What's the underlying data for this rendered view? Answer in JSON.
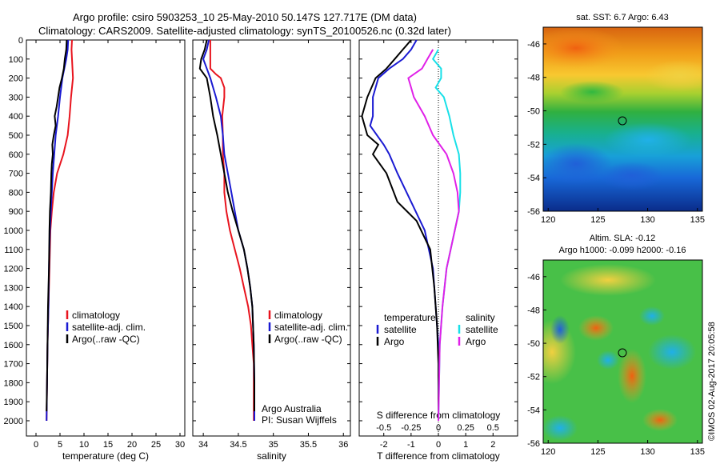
{
  "title": {
    "line1": "Argo profile: csiro 5903253_10 25-May-2010 50.147S 127.717E (DM data)",
    "line2": "Climatology: CARS2009. Satellite-adjusted climatology: synTS_20100526.nc (0.32d later)"
  },
  "colors": {
    "climatology": "#e8141e",
    "satellite": "#1a1ad2",
    "argo": "#000000",
    "sat_salinity": "#18e0e8",
    "argo_salinity": "#e020e8"
  },
  "chart_data": [
    {
      "type": "line",
      "xlabel": "temperature (deg C)",
      "ylabel": "",
      "xlim": [
        -2,
        31
      ],
      "ylim": [
        2080,
        0
      ],
      "x_ticks": [
        "0",
        "5",
        "10",
        "15",
        "20",
        "25",
        "30"
      ],
      "y_ticks": [
        "0",
        "100",
        "200",
        "300",
        "400",
        "500",
        "600",
        "700",
        "800",
        "900",
        "1000",
        "1100",
        "1200",
        "1300",
        "1400",
        "1500",
        "1600",
        "1700",
        "1800",
        "1900",
        "2000"
      ],
      "legend": [
        "climatology",
        "satellite-adj. clim.",
        "Argo(..raw -QC)"
      ],
      "series": [
        {
          "name": "climatology",
          "points": [
            [
              7.5,
              0
            ],
            [
              7.4,
              50
            ],
            [
              7.5,
              100
            ],
            [
              7.6,
              150
            ],
            [
              7.7,
              200
            ],
            [
              7.3,
              300
            ],
            [
              7.0,
              400
            ],
            [
              6.6,
              500
            ],
            [
              5.7,
              600
            ],
            [
              4.4,
              700
            ],
            [
              3.7,
              800
            ],
            [
              3.3,
              900
            ],
            [
              3.0,
              1000
            ],
            [
              2.8,
              1200
            ],
            [
              2.6,
              1400
            ],
            [
              2.4,
              1600
            ],
            [
              2.3,
              1800
            ],
            [
              2.2,
              2000
            ]
          ]
        },
        {
          "name": "satellite-adj. clim.",
          "points": [
            [
              6.7,
              0
            ],
            [
              6.6,
              50
            ],
            [
              6.3,
              100
            ],
            [
              5.9,
              150
            ],
            [
              5.5,
              200
            ],
            [
              5.0,
              300
            ],
            [
              4.6,
              400
            ],
            [
              4.1,
              500
            ],
            [
              3.8,
              600
            ],
            [
              3.5,
              700
            ],
            [
              3.3,
              800
            ],
            [
              3.1,
              900
            ],
            [
              2.9,
              1000
            ],
            [
              2.7,
              1200
            ],
            [
              2.6,
              1400
            ],
            [
              2.4,
              1600
            ],
            [
              2.3,
              1800
            ],
            [
              2.2,
              2000
            ]
          ]
        },
        {
          "name": "Argo(..raw -QC)",
          "points": [
            [
              6.4,
              0
            ],
            [
              6.3,
              50
            ],
            [
              6.0,
              100
            ],
            [
              5.8,
              150
            ],
            [
              5.4,
              200
            ],
            [
              4.9,
              250
            ],
            [
              4.6,
              300
            ],
            [
              4.3,
              350
            ],
            [
              3.9,
              400
            ],
            [
              4.1,
              450
            ],
            [
              3.7,
              500
            ],
            [
              3.4,
              550
            ],
            [
              3.5,
              600
            ],
            [
              3.3,
              650
            ],
            [
              3.2,
              700
            ],
            [
              3.1,
              800
            ],
            [
              2.9,
              900
            ],
            [
              2.8,
              1000
            ],
            [
              2.7,
              1200
            ],
            [
              2.5,
              1400
            ],
            [
              2.4,
              1600
            ],
            [
              2.3,
              1800
            ],
            [
              2.2,
              1950
            ]
          ]
        }
      ]
    },
    {
      "type": "line",
      "xlabel": "salinity",
      "xlim": [
        33.85,
        36.1
      ],
      "ylim": [
        2080,
        0
      ],
      "x_ticks": [
        "34",
        "34.5",
        "35",
        "35.5",
        "36"
      ],
      "legend": [
        "climatology",
        "satellite-adj. clim.",
        "Argo(..raw -QC)"
      ],
      "annotation": [
        "Argo Australia",
        "PI: Susan Wijffels"
      ],
      "series": [
        {
          "name": "climatology",
          "points": [
            [
              34.1,
              0
            ],
            [
              34.1,
              100
            ],
            [
              34.1,
              150
            ],
            [
              34.18,
              180
            ],
            [
              34.25,
              200
            ],
            [
              34.3,
              250
            ],
            [
              34.3,
              300
            ],
            [
              34.27,
              400
            ],
            [
              34.28,
              500
            ],
            [
              34.28,
              600
            ],
            [
              34.3,
              700
            ],
            [
              34.3,
              800
            ],
            [
              34.33,
              900
            ],
            [
              34.38,
              1000
            ],
            [
              34.45,
              1100
            ],
            [
              34.52,
              1200
            ],
            [
              34.58,
              1300
            ],
            [
              34.64,
              1400
            ],
            [
              34.68,
              1500
            ],
            [
              34.7,
              1600
            ],
            [
              34.72,
              1700
            ],
            [
              34.72,
              2000
            ]
          ]
        },
        {
          "name": "satellite-adj. clim.",
          "points": [
            [
              34.08,
              0
            ],
            [
              34.05,
              50
            ],
            [
              34.0,
              100
            ],
            [
              34.05,
              150
            ],
            [
              34.1,
              200
            ],
            [
              34.18,
              300
            ],
            [
              34.25,
              400
            ],
            [
              34.28,
              500
            ],
            [
              34.3,
              600
            ],
            [
              34.35,
              700
            ],
            [
              34.4,
              800
            ],
            [
              34.45,
              900
            ],
            [
              34.5,
              1000
            ],
            [
              34.58,
              1100
            ],
            [
              34.63,
              1200
            ],
            [
              34.67,
              1300
            ],
            [
              34.7,
              1400
            ],
            [
              34.72,
              1600
            ],
            [
              34.73,
              1800
            ],
            [
              34.73,
              2000
            ]
          ]
        },
        {
          "name": "Argo(..raw -QC)",
          "points": [
            [
              34.05,
              0
            ],
            [
              34.02,
              50
            ],
            [
              33.97,
              100
            ],
            [
              33.95,
              150
            ],
            [
              34.05,
              200
            ],
            [
              34.1,
              300
            ],
            [
              34.14,
              400
            ],
            [
              34.2,
              500
            ],
            [
              34.25,
              600
            ],
            [
              34.3,
              700
            ],
            [
              34.35,
              800
            ],
            [
              34.42,
              900
            ],
            [
              34.5,
              1000
            ],
            [
              34.58,
              1100
            ],
            [
              34.63,
              1200
            ],
            [
              34.67,
              1300
            ],
            [
              34.7,
              1400
            ],
            [
              34.72,
              1600
            ],
            [
              34.73,
              1800
            ],
            [
              34.73,
              1950
            ]
          ]
        }
      ]
    },
    {
      "type": "line",
      "xlabel": "T difference from climatology",
      "top_axis_label": "S difference from climatology",
      "xlim": [
        -2.9,
        2.9
      ],
      "ylim": [
        2080,
        0
      ],
      "x_ticks": [
        "-2",
        "-1",
        "0",
        "1",
        "2"
      ],
      "top_ticks": [
        "-0.5",
        "-0.25",
        "0",
        "0.25",
        "0.5"
      ],
      "legend_temperature": {
        "title": "temperature",
        "items": [
          "satellite",
          "Argo"
        ]
      },
      "legend_salinity": {
        "title": "salinity",
        "items": [
          "satellite",
          "Argo"
        ]
      },
      "series": [
        {
          "name": "satellite",
          "group": "temperature",
          "points": [
            [
              -0.8,
              0
            ],
            [
              -1.0,
              50
            ],
            [
              -1.3,
              100
            ],
            [
              -1.8,
              150
            ],
            [
              -2.2,
              200
            ],
            [
              -2.4,
              300
            ],
            [
              -2.4,
              400
            ],
            [
              -2.5,
              450
            ],
            [
              -2.0,
              550
            ],
            [
              -1.8,
              600
            ],
            [
              -1.5,
              700
            ],
            [
              -1.0,
              850
            ],
            [
              -0.5,
              1000
            ],
            [
              -0.2,
              1200
            ],
            [
              -0.1,
              1400
            ],
            [
              0,
              1600
            ],
            [
              0,
              2000
            ]
          ]
        },
        {
          "name": "Argo",
          "group": "temperature",
          "points": [
            [
              -1.0,
              0
            ],
            [
              -1.3,
              50
            ],
            [
              -1.6,
              100
            ],
            [
              -1.9,
              150
            ],
            [
              -2.3,
              200
            ],
            [
              -2.6,
              300
            ],
            [
              -2.8,
              400
            ],
            [
              -2.6,
              500
            ],
            [
              -2.2,
              550
            ],
            [
              -2.4,
              600
            ],
            [
              -1.9,
              700
            ],
            [
              -1.5,
              850
            ],
            [
              -0.8,
              950
            ],
            [
              -0.3,
              1100
            ],
            [
              -0.15,
              1300
            ],
            [
              -0.05,
              1500
            ],
            [
              0,
              1700
            ],
            [
              0,
              2000
            ]
          ]
        },
        {
          "name": "satellite",
          "group": "salinity",
          "points": [
            [
              0.0,
              50
            ],
            [
              -0.2,
              100
            ],
            [
              0.1,
              150
            ],
            [
              0.1,
              200
            ],
            [
              -0.1,
              250
            ],
            [
              0.2,
              300
            ],
            [
              0.4,
              400
            ],
            [
              0.55,
              500
            ],
            [
              0.75,
              600
            ],
            [
              0.8,
              700
            ],
            [
              0.8,
              800
            ],
            [
              0.75,
              900
            ],
            [
              0.6,
              1000
            ],
            [
              0.3,
              1200
            ],
            [
              0.15,
              1400
            ],
            [
              0.05,
              1600
            ],
            [
              0,
              2000
            ]
          ]
        },
        {
          "name": "Argo",
          "group": "salinity",
          "points": [
            [
              -0.2,
              50
            ],
            [
              -0.4,
              100
            ],
            [
              -0.6,
              150
            ],
            [
              -1.1,
              200
            ],
            [
              -1.0,
              250
            ],
            [
              -0.9,
              300
            ],
            [
              -0.5,
              400
            ],
            [
              -0.2,
              500
            ],
            [
              0.3,
              600
            ],
            [
              0.55,
              700
            ],
            [
              0.7,
              800
            ],
            [
              0.75,
              900
            ],
            [
              0.6,
              1000
            ],
            [
              0.3,
              1200
            ],
            [
              0.15,
              1400
            ],
            [
              0.05,
              1600
            ],
            [
              0,
              2000
            ]
          ]
        }
      ]
    }
  ],
  "maps": {
    "sst": {
      "title": "sat. SST: 6.7 Argo: 6.43",
      "x_ticks": [
        "120",
        "125",
        "130",
        "135"
      ],
      "y_ticks": [
        "-46",
        "-48",
        "-50",
        "-52",
        "-54",
        "-56"
      ]
    },
    "sla": {
      "title_line1": "Altim. SLA: -0.12",
      "title_line2": "Argo h1000: -0.099 h2000: -0.16",
      "x_ticks": [
        "120",
        "125",
        "130",
        "135"
      ],
      "y_ticks": [
        "-46",
        "-48",
        "-50",
        "-52",
        "-54",
        "-56"
      ]
    }
  },
  "credit": "©IMOS 02-Aug-2017 20:05:58"
}
